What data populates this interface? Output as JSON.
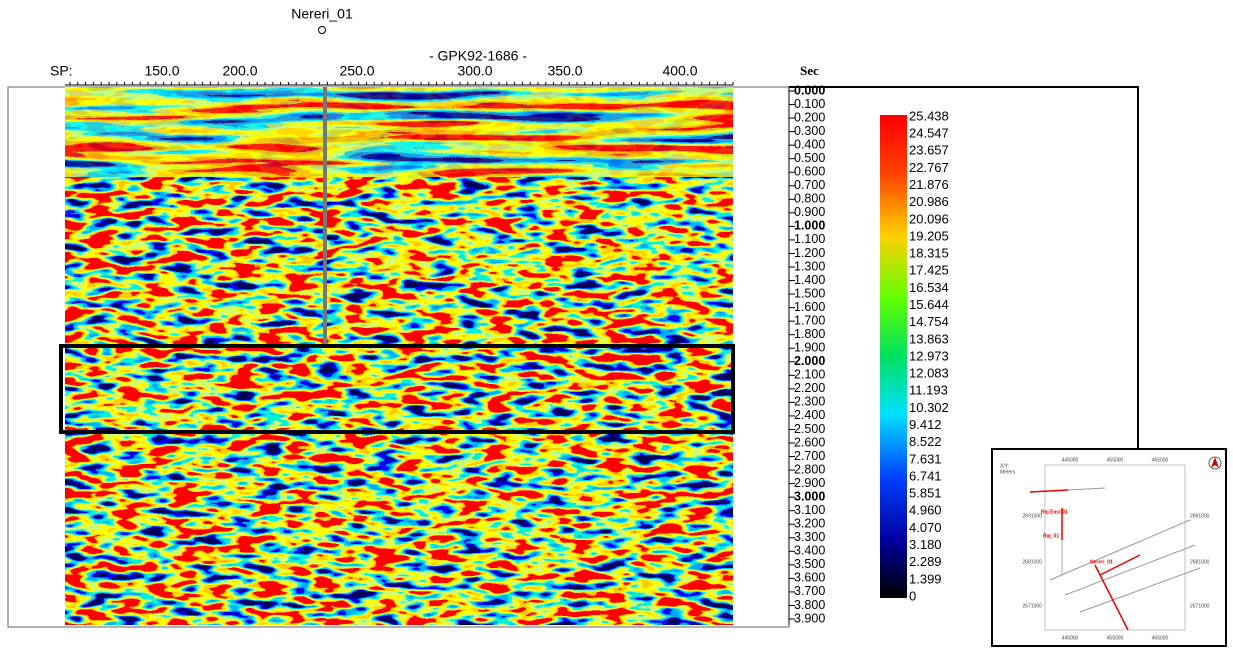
{
  "well_label": "Nereri_01",
  "line_name": "- GPK92-1686 -",
  "sp_axis": {
    "label": "SP:",
    "ticks": [
      "150.0",
      "200.0",
      "250.0",
      "300.0",
      "350.0",
      "400.0"
    ]
  },
  "time_axis": {
    "label": "Sec",
    "ticks": [
      "0.000",
      "0.100",
      "0.200",
      "0.300",
      "0.400",
      "0.500",
      "0.600",
      "0.700",
      "0.800",
      "0.900",
      "1.000",
      "1.100",
      "1.200",
      "1.300",
      "1.400",
      "1.500",
      "1.600",
      "1.700",
      "1.800",
      "1.900",
      "2.000",
      "2.100",
      "2.200",
      "2.300",
      "2.400",
      "2.500",
      "2.600",
      "2.700",
      "2.800",
      "2.900",
      "3.000",
      "3.100",
      "3.200",
      "3.300",
      "3.400",
      "3.500",
      "3.600",
      "3.700",
      "3.800",
      "3.900"
    ]
  },
  "colorbar": {
    "labels": [
      "25.438",
      "24.547",
      "23.657",
      "22.767",
      "21.876",
      "20.986",
      "20.096",
      "19.205",
      "18.315",
      "17.425",
      "16.534",
      "15.644",
      "14.754",
      "13.863",
      "12.973",
      "12.083",
      "11.193",
      "10.302",
      "9.412",
      "8.522",
      "7.631",
      "6.741",
      "5.851",
      "4.960",
      "4.070",
      "3.180",
      "2.289",
      "1.399",
      "0"
    ]
  },
  "map": {
    "xy_label": "X/Y:",
    "units": "Meters",
    "x_ticks": [
      "445000",
      "455000",
      "465000"
    ],
    "y_ticks": [
      "2691000",
      "2681000",
      "2671000"
    ],
    "wells": [
      "Raj East 01",
      "Raj_01",
      "Nereri_01"
    ]
  }
}
